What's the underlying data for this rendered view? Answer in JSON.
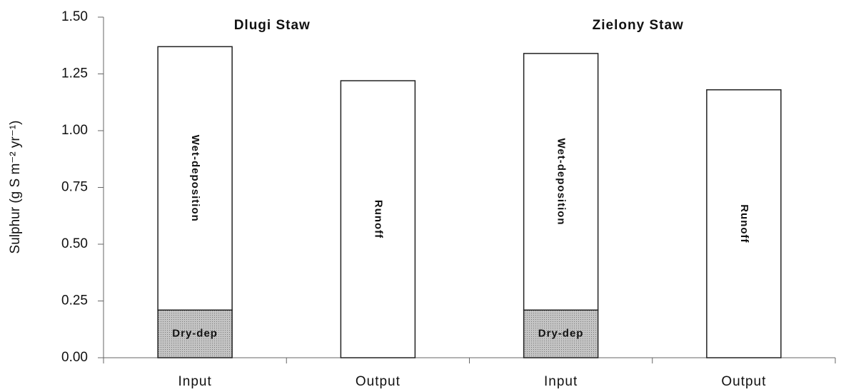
{
  "chart_data": {
    "type": "stacked-bar",
    "ylabel": "Sulphur (g S m⁻² yr⁻¹)",
    "groups": [
      "Dlugi Staw",
      "Zielony Staw"
    ],
    "categories": [
      "Input",
      "Output",
      "Input",
      "Output"
    ],
    "series": [
      {
        "name": "Dry-dep",
        "color": "#b4b4b4",
        "values": [
          0.21,
          null,
          0.21,
          null
        ]
      },
      {
        "name": "Wet-deposition",
        "color": "#ffffff",
        "values": [
          1.16,
          null,
          1.13,
          null
        ]
      },
      {
        "name": "Runoff",
        "color": "#ffffff",
        "values": [
          null,
          1.22,
          null,
          1.18
        ]
      }
    ],
    "ylim": [
      0,
      1.5
    ],
    "yticks": [
      {
        "value": 0,
        "label": "0.00"
      },
      {
        "value": 0.25,
        "label": "0.25"
      },
      {
        "value": 0.5,
        "label": "0.50"
      },
      {
        "value": 0.75,
        "label": "0.75"
      },
      {
        "value": 1,
        "label": "1.00"
      },
      {
        "value": 1.25,
        "label": "1.25"
      },
      {
        "value": 1.5,
        "label": "1.50"
      }
    ]
  }
}
